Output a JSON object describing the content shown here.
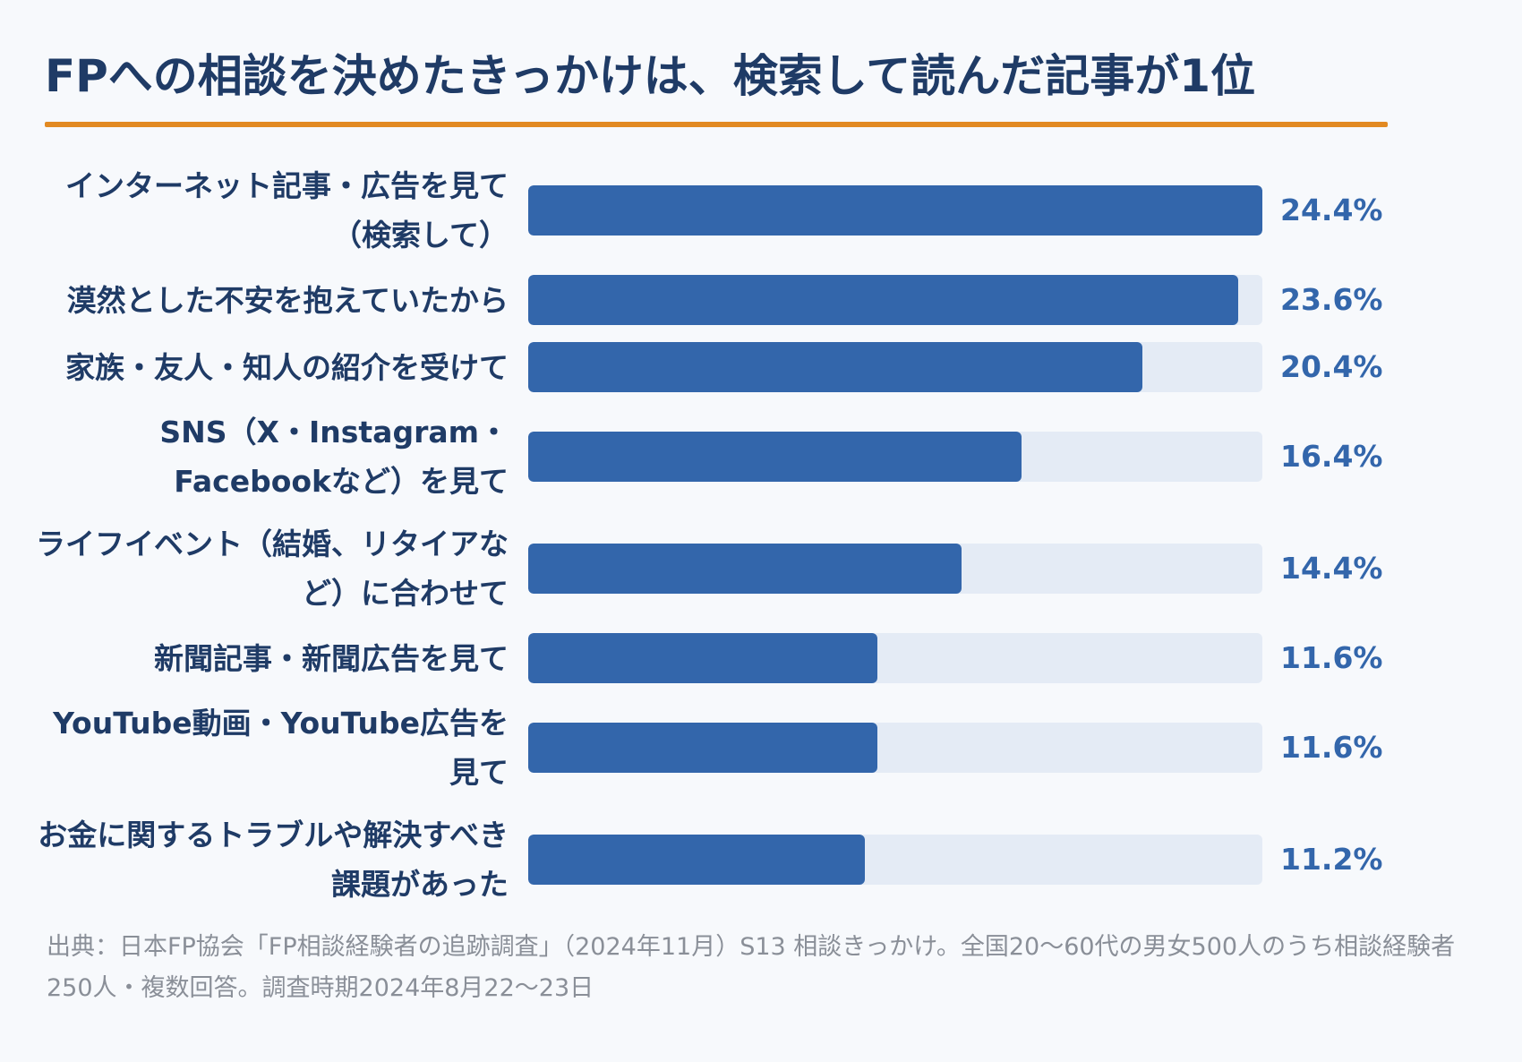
{
  "title": "FPへの相談を決めたきっかけは、検索して読んだ記事が1位",
  "colors": {
    "title": "#1f3b66",
    "accent_rule": "#e28a22",
    "bar": "#3366ab",
    "track": "#e4ebf5",
    "value": "#3366ab",
    "footnote": "#8a8f98"
  },
  "chart_data": {
    "type": "bar",
    "orientation": "horizontal",
    "unit": "%",
    "xlim": [
      0,
      24.4
    ],
    "categories": [
      "インターネット記事・広告を見て（検索して）",
      "漠然とした不安を抱えていたから",
      "家族・友人・知人の紹介を受けて",
      "SNS（X・Instagram・Facebookなど）を見て",
      "ライフイベント（結婚、リタイアなど）に合わせて",
      "新聞記事・新聞広告を見て",
      "YouTube動画・YouTube広告を見て",
      "お金に関するトラブルや解決すべき課題があった"
    ],
    "values": [
      24.4,
      23.6,
      20.4,
      16.4,
      14.4,
      11.6,
      11.6,
      11.2
    ],
    "value_labels": [
      "24.4%",
      "23.6%",
      "20.4%",
      "16.4%",
      "14.4%",
      "11.6%",
      "11.6%",
      "11.2%"
    ]
  },
  "footnote": "出典：日本FP協会「FP相談経験者の追跡調査」（2024年11月）S13 相談きっかけ。全国20〜60代の男女500人のうち相談経験者250人・複数回答。調査時期2024年8月22〜23日"
}
